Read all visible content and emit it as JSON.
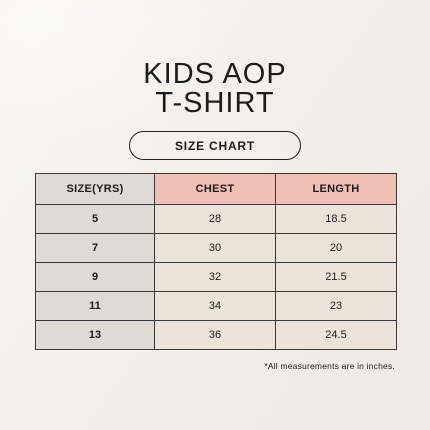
{
  "title": {
    "line1": "KIDS AOP",
    "line2": "T-SHIRT"
  },
  "subtitle": "SIZE CHART",
  "table": {
    "headers": [
      "SIZE(YRS)",
      "CHEST",
      "LENGTH"
    ],
    "rows": [
      [
        "5",
        "28",
        "18.5"
      ],
      [
        "7",
        "30",
        "20"
      ],
      [
        "9",
        "32",
        "21.5"
      ],
      [
        "11",
        "34",
        "23"
      ],
      [
        "13",
        "36",
        "24.5"
      ]
    ]
  },
  "note": "*All measurements are in inches.",
  "colors": {
    "background": "#f4f1ec",
    "header_accent": "#efc0b3",
    "size_column": "#dedad6",
    "value_cells": "#ece3d9"
  }
}
